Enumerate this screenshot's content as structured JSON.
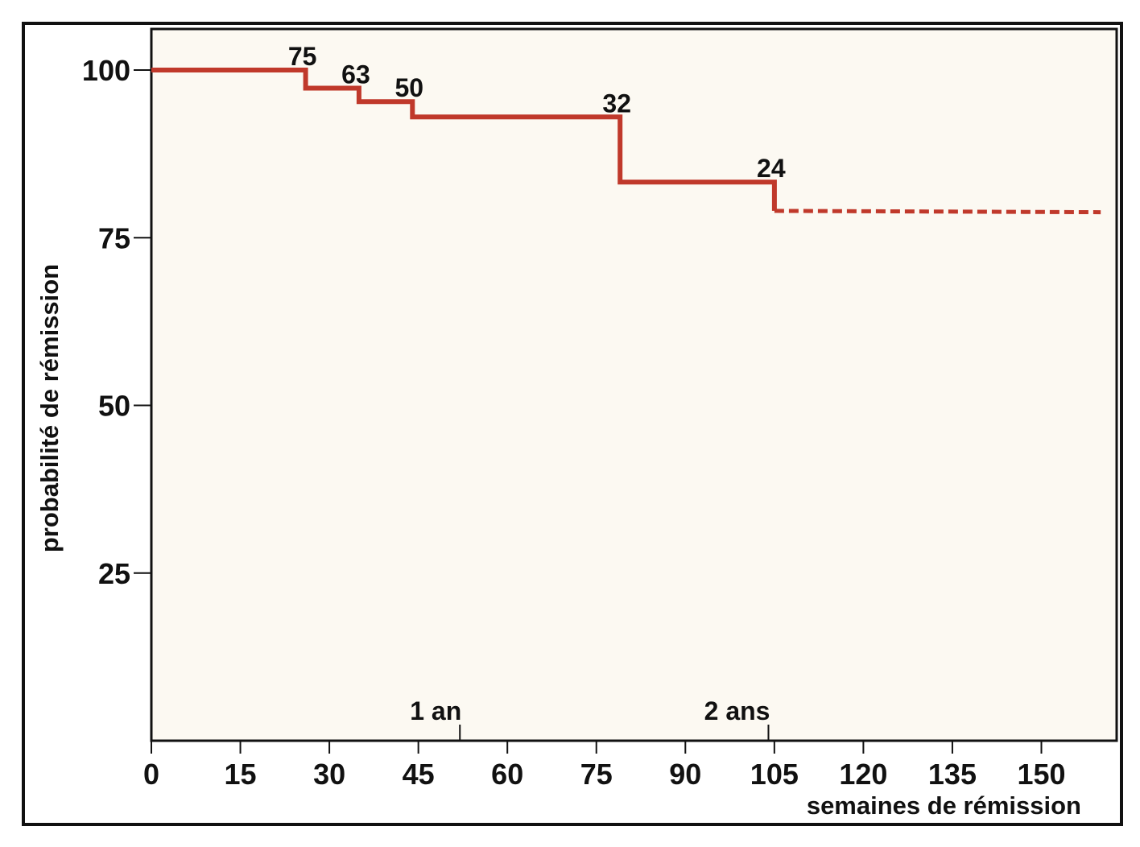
{
  "chart_data": {
    "type": "line",
    "title": "",
    "xlabel": "semaines de rémission",
    "ylabel": "probabilité de rémission",
    "xlim": [
      0,
      160
    ],
    "ylim": [
      0,
      105
    ],
    "x_ticks": [
      0,
      15,
      30,
      45,
      60,
      75,
      90,
      105,
      120,
      135,
      150
    ],
    "x_tick_labels": [
      "0",
      "15",
      "30",
      "45",
      "60",
      "75",
      "90",
      "105",
      "120",
      "135",
      "150"
    ],
    "y_ticks": [
      25,
      50,
      75,
      100
    ],
    "y_tick_labels": [
      "25",
      "50",
      "75",
      "100"
    ],
    "grid": false,
    "line_color": "#c0392b",
    "background_color": "#fcf9f2",
    "series": [
      {
        "style": "step",
        "points": [
          [
            0,
            100
          ],
          [
            26,
            100
          ],
          [
            26,
            97.3
          ],
          [
            35,
            97.3
          ],
          [
            35,
            95.3
          ],
          [
            44,
            95.3
          ],
          [
            44,
            93
          ],
          [
            79,
            93
          ],
          [
            79,
            83.3
          ],
          [
            105,
            83.3
          ],
          [
            105,
            79
          ]
        ]
      },
      {
        "style": "dashed",
        "points": [
          [
            105,
            79
          ],
          [
            160,
            78.8
          ]
        ]
      }
    ],
    "step_labels": [
      {
        "text": "75",
        "x": 26,
        "y": 100
      },
      {
        "text": "63",
        "x": 35,
        "y": 97.3
      },
      {
        "text": "50",
        "x": 44,
        "y": 95.3
      },
      {
        "text": "32",
        "x": 79,
        "y": 93
      },
      {
        "text": "24",
        "x": 105,
        "y": 83.3
      }
    ],
    "annotations": [
      {
        "text": "1 an",
        "x": 52
      },
      {
        "text": "2 ans",
        "x": 104
      }
    ]
  }
}
